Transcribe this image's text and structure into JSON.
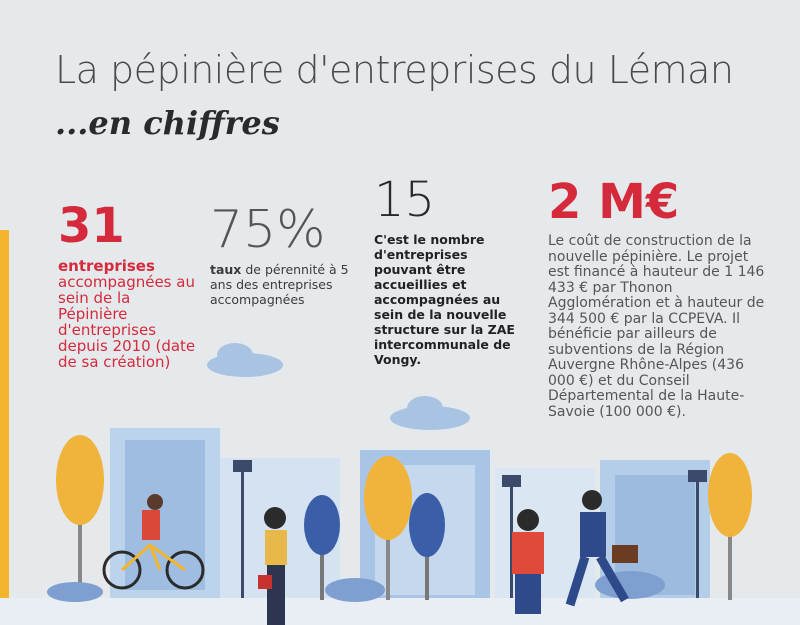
{
  "header": {
    "title": "La pépinière d'entreprises du Léman",
    "subtitle": "...en chiffres"
  },
  "stats": [
    {
      "value": "31",
      "lead": "entreprises",
      "text": "accompagnées au sein de la Pépinière d'entreprises depuis 2010 (date de sa création)"
    },
    {
      "value": "75%",
      "lead": "taux",
      "text": "de pérennité à 5 ans des entreprises accompagnées"
    },
    {
      "value": "15",
      "text": "C'est le nombre d'entreprises pouvant être accueillies et accompagnées au sein de la nouvelle structure sur la ZAE intercommunale de Vongy."
    },
    {
      "value": "2 M€",
      "text": "Le coût de construction de la nouvelle pépinière. Le projet est financé à hauteur de 1 146 433 € par Thonon Agglomération et à hauteur de 344 500 € par la CCPEVA. Il bénéficie par ailleurs de subventions de la Région Auvergne Rhône-Alpes (436 000 €) et du Conseil Départemental de la Haute-Savoie (100 000 €)."
    }
  ]
}
